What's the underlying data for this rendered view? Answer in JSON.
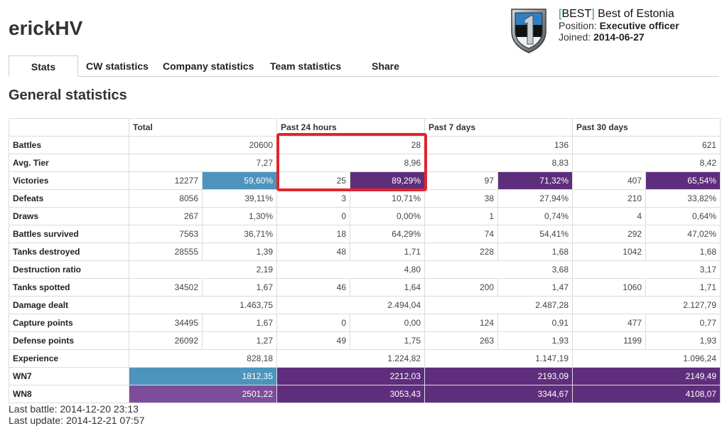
{
  "player": {
    "name": "erickHV"
  },
  "clan": {
    "tag": "BEST",
    "name": "Best of Estonia",
    "position_label": "Position:",
    "position": "Executive officer",
    "joined_label": "Joined:",
    "joined": "2014-06-27"
  },
  "tabs": [
    "Stats",
    "CW statistics",
    "Company statistics",
    "Team statistics",
    "Share"
  ],
  "section_title": "General statistics",
  "table": {
    "headers": [
      "",
      "Total",
      "Past 24 hours",
      "Past 7 days",
      "Past 30 days"
    ],
    "rows": [
      {
        "label": "Battles",
        "type": "single",
        "cells": [
          {
            "v": "20600"
          },
          {
            "v": "28"
          },
          {
            "v": "136"
          },
          {
            "v": "621"
          }
        ]
      },
      {
        "label": "Avg. Tier",
        "type": "single",
        "cells": [
          {
            "v": "7,27"
          },
          {
            "v": "8,96"
          },
          {
            "v": "8,83"
          },
          {
            "v": "8,42"
          }
        ]
      },
      {
        "label": "Victories",
        "type": "pair",
        "cells": [
          {
            "v": "12277",
            "p": "59,60%",
            "pc": "blue"
          },
          {
            "v": "25",
            "p": "89,29%",
            "pc": "purple"
          },
          {
            "v": "97",
            "p": "71,32%",
            "pc": "purple"
          },
          {
            "v": "407",
            "p": "65,54%",
            "pc": "purple"
          }
        ]
      },
      {
        "label": "Defeats",
        "type": "pair",
        "cells": [
          {
            "v": "8056",
            "p": "39,11%"
          },
          {
            "v": "3",
            "p": "10,71%"
          },
          {
            "v": "38",
            "p": "27,94%"
          },
          {
            "v": "210",
            "p": "33,82%"
          }
        ]
      },
      {
        "label": "Draws",
        "type": "pair",
        "cells": [
          {
            "v": "267",
            "p": "1,30%"
          },
          {
            "v": "0",
            "p": "0,00%"
          },
          {
            "v": "1",
            "p": "0,74%"
          },
          {
            "v": "4",
            "p": "0,64%"
          }
        ]
      },
      {
        "label": "Battles survived",
        "type": "pair",
        "cells": [
          {
            "v": "7563",
            "p": "36,71%"
          },
          {
            "v": "18",
            "p": "64,29%"
          },
          {
            "v": "74",
            "p": "54,41%"
          },
          {
            "v": "292",
            "p": "47,02%"
          }
        ]
      },
      {
        "label": "Tanks destroyed",
        "type": "pair",
        "cells": [
          {
            "v": "28555",
            "p": "1,39"
          },
          {
            "v": "48",
            "p": "1,71"
          },
          {
            "v": "228",
            "p": "1,68"
          },
          {
            "v": "1042",
            "p": "1,68"
          }
        ]
      },
      {
        "label": "Destruction ratio",
        "type": "single",
        "cells": [
          {
            "v": "2,19"
          },
          {
            "v": "4,80"
          },
          {
            "v": "3,68"
          },
          {
            "v": "3,17"
          }
        ]
      },
      {
        "label": "Tanks spotted",
        "type": "pair",
        "cells": [
          {
            "v": "34502",
            "p": "1,67"
          },
          {
            "v": "46",
            "p": "1,64"
          },
          {
            "v": "200",
            "p": "1,47"
          },
          {
            "v": "1060",
            "p": "1,71"
          }
        ]
      },
      {
        "label": "Damage dealt",
        "type": "single",
        "cells": [
          {
            "v": "1.463,75"
          },
          {
            "v": "2.494,04"
          },
          {
            "v": "2.487,28"
          },
          {
            "v": "2.127,79"
          }
        ]
      },
      {
        "label": "Capture points",
        "type": "pair",
        "cells": [
          {
            "v": "34495",
            "p": "1,67"
          },
          {
            "v": "0",
            "p": "0,00"
          },
          {
            "v": "124",
            "p": "0,91"
          },
          {
            "v": "477",
            "p": "0,77"
          }
        ]
      },
      {
        "label": "Defense points",
        "type": "pair",
        "cells": [
          {
            "v": "26092",
            "p": "1,27"
          },
          {
            "v": "49",
            "p": "1,75"
          },
          {
            "v": "263",
            "p": "1,93"
          },
          {
            "v": "1199",
            "p": "1,93"
          }
        ]
      },
      {
        "label": "Experience",
        "type": "single",
        "cells": [
          {
            "v": "828,18"
          },
          {
            "v": "1.224,82"
          },
          {
            "v": "1.147,19"
          },
          {
            "v": "1.096,24"
          }
        ]
      },
      {
        "label": "WN7",
        "type": "single",
        "cells": [
          {
            "v": "1812,35",
            "c": "blue"
          },
          {
            "v": "2212,03",
            "c": "purple"
          },
          {
            "v": "2193,09",
            "c": "purple"
          },
          {
            "v": "2149,49",
            "c": "purple"
          }
        ]
      },
      {
        "label": "WN8",
        "type": "single",
        "cells": [
          {
            "v": "2501,22",
            "c": "lpurple"
          },
          {
            "v": "3053,43",
            "c": "purple"
          },
          {
            "v": "3344,67",
            "c": "purple"
          },
          {
            "v": "4108,07",
            "c": "purple"
          }
        ]
      }
    ]
  },
  "footer": {
    "last_battle": "Last battle: 2014-12-20 23:13",
    "last_update": "Last update: 2014-12-21 07:57"
  },
  "colors": {
    "blue": "#4d94bd",
    "purple": "#5e2e7c",
    "light_purple": "#7d4c9b",
    "highlight": "#e0252e"
  }
}
